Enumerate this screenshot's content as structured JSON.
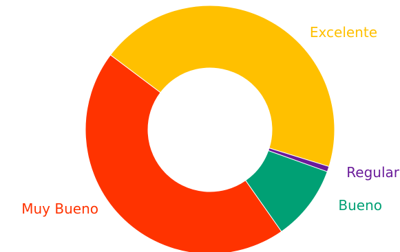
{
  "chart_data": {
    "type": "pie",
    "variant": "donut",
    "categories": [
      "Excelente",
      "Regular",
      "Bueno",
      "Muy Bueno"
    ],
    "values": [
      44.5,
      0.7,
      9.8,
      45.0
    ],
    "colors": [
      "#FFC000",
      "#6A1B9A",
      "#00A074",
      "#FF3300"
    ],
    "legend": "none"
  }
}
